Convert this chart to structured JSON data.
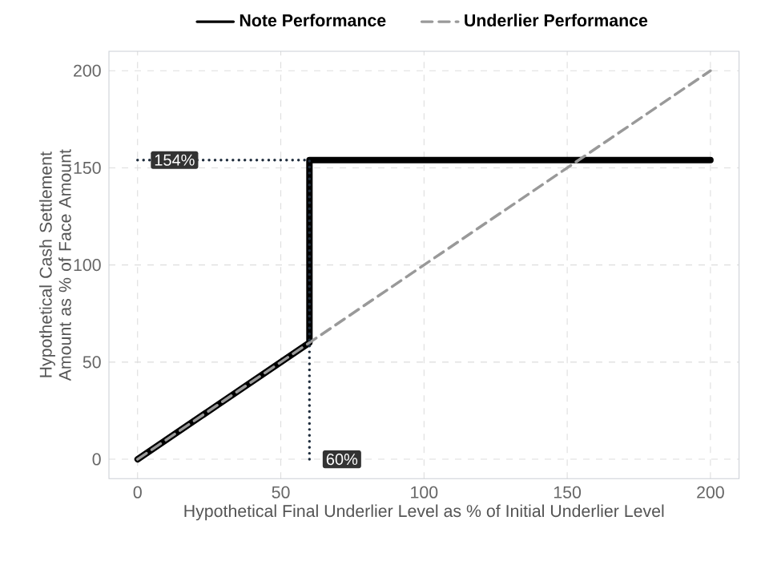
{
  "chart_data": {
    "type": "line",
    "xlabel": "Hypothetical Final Underlier Level as % of Initial Underlier Level",
    "ylabel": "Hypothetical Cash Settlement Amount as % of Face Amount",
    "xlim": [
      -10,
      210
    ],
    "ylim": [
      -10,
      210
    ],
    "xticks": [
      0,
      50,
      100,
      150,
      200
    ],
    "yticks": [
      0,
      50,
      100,
      150,
      200
    ],
    "grid": true,
    "legend": "top",
    "marker": "none",
    "series": [
      {
        "name": "Note Performance",
        "color": "#000000",
        "line_style": "solid",
        "x": [
          0,
          60,
          60,
          200
        ],
        "values": [
          0,
          60,
          154,
          154
        ]
      },
      {
        "name": "Underlier Performance",
        "color": "#999999",
        "line_style": "dashed",
        "x": [
          0,
          200
        ],
        "values": [
          0,
          200
        ]
      },
      {
        "color": "#1f2d3d",
        "line_style": "dotted",
        "x": [
          0,
          60,
          60
        ],
        "values": [
          154,
          154,
          0
        ]
      }
    ],
    "annotations": [
      {
        "text": "154%",
        "x": 0,
        "y": 154
      },
      {
        "text": "60%",
        "x": 60,
        "y": 0
      }
    ]
  }
}
